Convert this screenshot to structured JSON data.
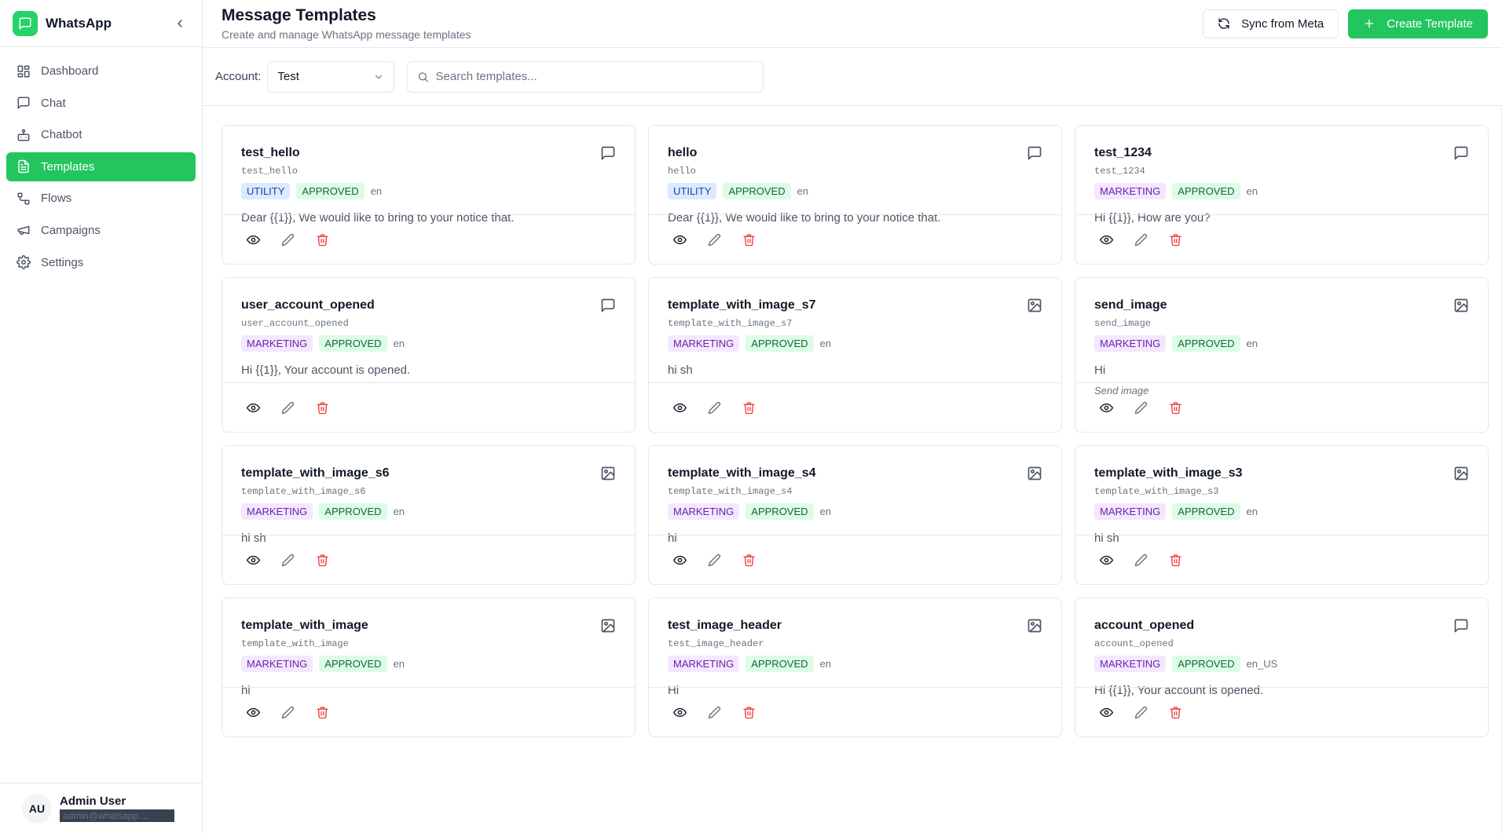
{
  "app": {
    "name": "WhatsApp"
  },
  "nav": [
    {
      "label": "Dashboard",
      "icon": "dashboard-icon",
      "active": false
    },
    {
      "label": "Chat",
      "icon": "chat-icon",
      "active": false
    },
    {
      "label": "Chatbot",
      "icon": "bot-icon",
      "active": false
    },
    {
      "label": "Templates",
      "icon": "file-text-icon",
      "active": true
    },
    {
      "label": "Flows",
      "icon": "flows-icon",
      "active": false
    },
    {
      "label": "Campaigns",
      "icon": "megaphone-icon",
      "active": false
    },
    {
      "label": "Settings",
      "icon": "gear-icon",
      "active": false
    }
  ],
  "user": {
    "initials": "AU",
    "name": "Admin User",
    "email": "admin@whatsapp...."
  },
  "header": {
    "title": "Message Templates",
    "subtitle": "Create and manage WhatsApp message templates",
    "sync_label": "Sync from Meta",
    "create_label": "Create Template"
  },
  "toolbar": {
    "account_label": "Account:",
    "account_value": "Test",
    "search_placeholder": "Search templates..."
  },
  "colors": {
    "accent": "#22c55e",
    "danger": "#ef4444"
  },
  "templates": [
    {
      "name": "test_hello",
      "code": "test_hello",
      "category": "UTILITY",
      "status": "APPROVED",
      "lang": "en",
      "text": "Dear {{1}}, We would like to bring to your notice that.",
      "note": "",
      "type": "text"
    },
    {
      "name": "hello",
      "code": "hello",
      "category": "UTILITY",
      "status": "APPROVED",
      "lang": "en",
      "text": "Dear {{1}}, We would like to bring to your notice that.",
      "note": "",
      "type": "text"
    },
    {
      "name": "test_1234",
      "code": "test_1234",
      "category": "MARKETING",
      "status": "APPROVED",
      "lang": "en",
      "text": "Hi {{1}}, How are you?",
      "note": "",
      "type": "text"
    },
    {
      "name": "user_account_opened",
      "code": "user_account_opened",
      "category": "MARKETING",
      "status": "APPROVED",
      "lang": "en",
      "text": "Hi {{1}}, Your account is opened.",
      "note": "",
      "type": "text"
    },
    {
      "name": "template_with_image_s7",
      "code": "template_with_image_s7",
      "category": "MARKETING",
      "status": "APPROVED",
      "lang": "en",
      "text": "hi sh",
      "note": "",
      "type": "image"
    },
    {
      "name": "send_image",
      "code": "send_image",
      "category": "MARKETING",
      "status": "APPROVED",
      "lang": "en",
      "text": "Hi",
      "note": "Send image",
      "type": "image"
    },
    {
      "name": "template_with_image_s6",
      "code": "template_with_image_s6",
      "category": "MARKETING",
      "status": "APPROVED",
      "lang": "en",
      "text": "hi sh",
      "note": "",
      "type": "image"
    },
    {
      "name": "template_with_image_s4",
      "code": "template_with_image_s4",
      "category": "MARKETING",
      "status": "APPROVED",
      "lang": "en",
      "text": "hi",
      "note": "",
      "type": "image"
    },
    {
      "name": "template_with_image_s3",
      "code": "template_with_image_s3",
      "category": "MARKETING",
      "status": "APPROVED",
      "lang": "en",
      "text": "hi sh",
      "note": "",
      "type": "image"
    },
    {
      "name": "template_with_image",
      "code": "template_with_image",
      "category": "MARKETING",
      "status": "APPROVED",
      "lang": "en",
      "text": "hi",
      "note": "",
      "type": "image"
    },
    {
      "name": "test_image_header",
      "code": "test_image_header",
      "category": "MARKETING",
      "status": "APPROVED",
      "lang": "en",
      "text": "Hi",
      "note": "",
      "type": "image"
    },
    {
      "name": "account_opened",
      "code": "account_opened",
      "category": "MARKETING",
      "status": "APPROVED",
      "lang": "en_US",
      "text": "Hi {{1}}, Your account is opened.",
      "note": "",
      "type": "text"
    }
  ]
}
